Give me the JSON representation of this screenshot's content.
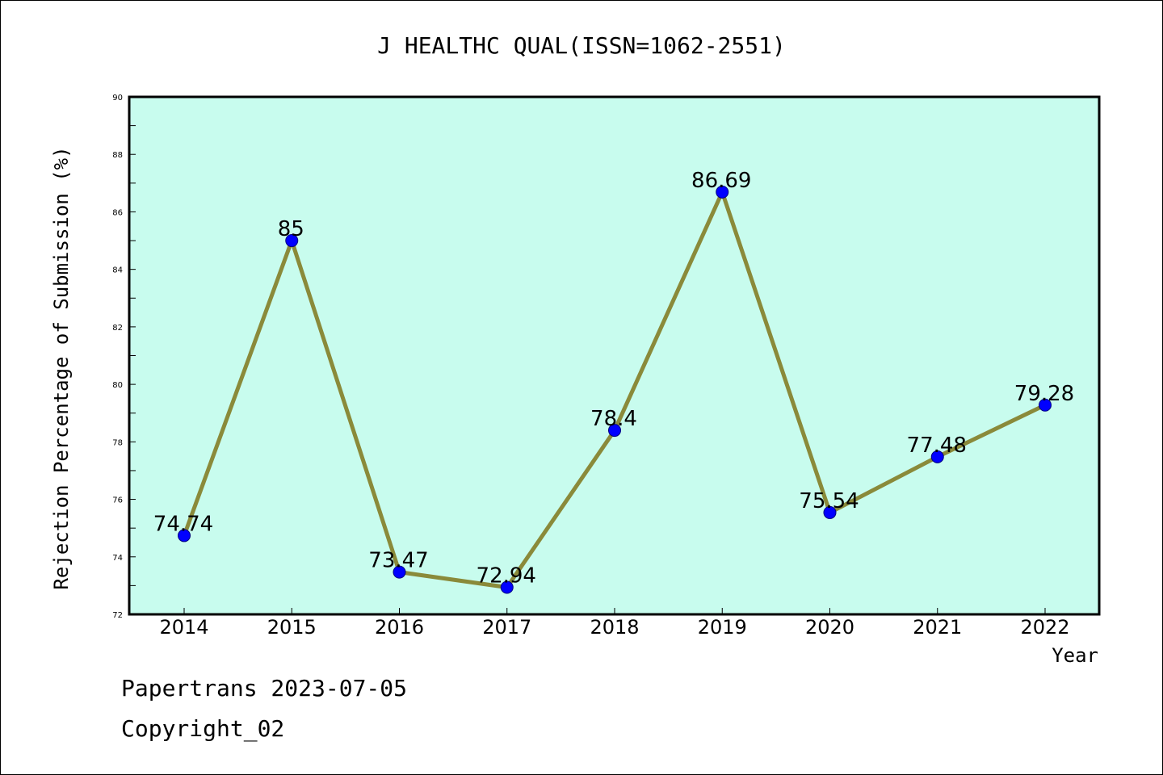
{
  "chart_data": {
    "type": "line",
    "title": "J HEALTHC QUAL(ISSN=1062-2551)",
    "xlabel": "Year",
    "ylabel": "Rejection Percentage of Submission (%)",
    "categories": [
      "2014",
      "2015",
      "2016",
      "2017",
      "2018",
      "2019",
      "2020",
      "2021",
      "2022"
    ],
    "series": [
      {
        "values": [
          74.74,
          85,
          73.47,
          72.94,
          78.4,
          86.69,
          75.54,
          77.48,
          79.28
        ],
        "labels": [
          "74.74",
          "85",
          "73.47",
          "72.94",
          "78.4",
          "86.69",
          "75.54",
          "77.48",
          "79.28"
        ]
      }
    ],
    "ylim": [
      72,
      90
    ],
    "yticks": [
      "72",
      "74",
      "76",
      "78",
      "80",
      "82",
      "84",
      "86",
      "88",
      "90"
    ],
    "grid": false,
    "colors": {
      "plot_background": "#c8fcee",
      "line": "#8a8a3a",
      "marker": "#0000ff",
      "marker_edge": "#000080"
    }
  },
  "footer": {
    "date": "Papertrans 2023-07-05",
    "copyright": "Copyright_02"
  }
}
